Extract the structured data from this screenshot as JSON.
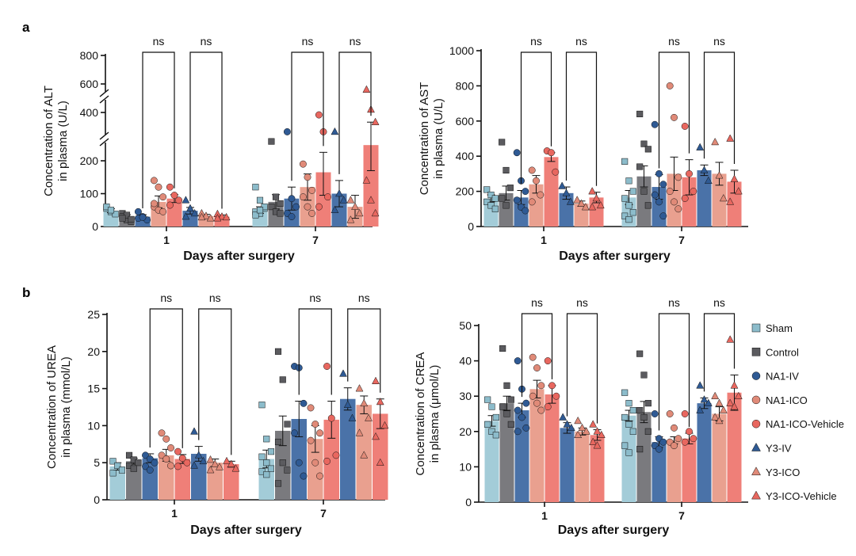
{
  "figure": {
    "panel_labels": [
      "a",
      "b"
    ],
    "legend": [
      {
        "name": "Sham",
        "color": "#a3ccd8",
        "marker": "square",
        "marker_color": "#8cbccb"
      },
      {
        "name": "Control",
        "color": "#7a7a7e",
        "marker": "square",
        "marker_color": "#5b5b5f"
      },
      {
        "name": "NA1-IV",
        "color": "#4a72a8",
        "marker": "circle",
        "marker_color": "#2f5a94"
      },
      {
        "name": "NA1-ICO",
        "color": "#e9a08f",
        "marker": "circle",
        "marker_color": "#e08a78"
      },
      {
        "name": "NA1-ICO-Vehicle",
        "color": "#ef7f78",
        "marker": "circle",
        "marker_color": "#e8675f"
      },
      {
        "name": "Y3-IV",
        "color": "#4a72a8",
        "marker": "triangle",
        "marker_color": "#2f5a94"
      },
      {
        "name": "Y3-ICO",
        "color": "#e9a08f",
        "marker": "triangle",
        "marker_color": "#e08a78"
      },
      {
        "name": "Y3-ICO-Vehicle",
        "color": "#ef7f78",
        "marker": "triangle",
        "marker_color": "#e8675f"
      }
    ]
  },
  "chart_data": [
    {
      "id": "alt",
      "panel": "a",
      "type": "bar",
      "title": "",
      "ylabel_lines": [
        "Concentration of ALT",
        "in plasma (U/L)"
      ],
      "xlabel": "Days after surgery",
      "categories": [
        "1",
        "7"
      ],
      "broken_axis": true,
      "ylim": [
        0,
        800
      ],
      "yticks": [
        0,
        100,
        200,
        400,
        600,
        800
      ],
      "series": [
        {
          "name": "Sham",
          "values": [
            48,
            50
          ],
          "errors": [
            6,
            10
          ]
        },
        {
          "name": "Control",
          "values": [
            28,
            75
          ],
          "errors": [
            8,
            22
          ]
        },
        {
          "name": "NA1-IV",
          "values": [
            30,
            85
          ],
          "errors": [
            6,
            35
          ]
        },
        {
          "name": "NA1-ICO",
          "values": [
            75,
            120
          ],
          "errors": [
            18,
            40
          ]
        },
        {
          "name": "NA1-ICO-Vehicle",
          "values": [
            85,
            165
          ],
          "errors": [
            12,
            70
          ]
        },
        {
          "name": "Y3-IV",
          "values": [
            48,
            100
          ],
          "errors": [
            10,
            40
          ]
        },
        {
          "name": "Y3-ICO",
          "values": [
            32,
            60
          ],
          "errors": [
            5,
            35
          ]
        },
        {
          "name": "Y3-ICO-Vehicle",
          "values": [
            30,
            265
          ],
          "errors": [
            5,
            95
          ]
        }
      ],
      "points": [
        [
          [
            55,
            45,
            38,
            60,
            50
          ],
          [
            120,
            80,
            55,
            45,
            40,
            60,
            35,
            50
          ]
        ],
        [
          [
            40,
            20,
            15,
            30,
            35,
            22,
            25
          ],
          [
            280,
            90,
            70,
            60,
            45,
            40
          ]
        ],
        [
          [
            45,
            30,
            20,
            25,
            28
          ],
          [
            320,
            85,
            60,
            40,
            30
          ]
        ],
        [
          [
            140,
            120,
            90,
            60,
            50,
            45,
            70
          ],
          [
            190,
            150,
            110,
            90,
            60,
            40
          ]
        ],
        [
          [
            120,
            95,
            80,
            65
          ],
          [
            390,
            320,
            90,
            60
          ]
        ],
        [
          [
            80,
            55,
            40,
            30
          ],
          [
            320,
            100,
            80,
            50
          ]
        ],
        [
          [
            40,
            32,
            25,
            28
          ],
          [
            80,
            60,
            40,
            20
          ]
        ],
        [
          [
            38,
            30,
            28,
            25
          ],
          [
            560,
            420,
            360,
            140,
            80,
            40
          ]
        ]
      ],
      "significance": [
        {
          "pair": [
            2,
            4
          ],
          "category": 0,
          "label": "ns"
        },
        {
          "pair": [
            5,
            7
          ],
          "category": 0,
          "label": "ns"
        },
        {
          "pair": [
            2,
            4
          ],
          "category": 1,
          "label": "ns"
        },
        {
          "pair": [
            5,
            7
          ],
          "category": 1,
          "label": "ns"
        }
      ]
    },
    {
      "id": "ast",
      "panel": "a",
      "type": "bar",
      "title": "",
      "ylabel_lines": [
        "Concentration of AST",
        "in plasma (U/L)"
      ],
      "xlabel": "Days after surgery",
      "categories": [
        "1",
        "7"
      ],
      "broken_axis": false,
      "ylim": [
        0,
        1000
      ],
      "yticks": [
        0,
        200,
        400,
        600,
        800,
        1000
      ],
      "series": [
        {
          "name": "Sham",
          "values": [
            160,
            165
          ],
          "errors": [
            20,
            40
          ]
        },
        {
          "name": "Control",
          "values": [
            190,
            285
          ],
          "errors": [
            40,
            60
          ]
        },
        {
          "name": "NA1-IV",
          "values": [
            165,
            225
          ],
          "errors": [
            40,
            70
          ]
        },
        {
          "name": "NA1-ICO",
          "values": [
            240,
            300
          ],
          "errors": [
            50,
            95
          ]
        },
        {
          "name": "NA1-ICO-Vehicle",
          "values": [
            395,
            280
          ],
          "errors": [
            25,
            100
          ]
        },
        {
          "name": "Y3-IV",
          "values": [
            190,
            320
          ],
          "errors": [
            35,
            30
          ]
        },
        {
          "name": "Y3-ICO",
          "values": [
            130,
            300
          ],
          "errors": [
            15,
            65
          ]
        },
        {
          "name": "Y3-ICO-Vehicle",
          "values": [
            165,
            255
          ],
          "errors": [
            30,
            65
          ]
        }
      ],
      "points": [
        [
          [
            210,
            180,
            160,
            140,
            120,
            100
          ],
          [
            370,
            260,
            200,
            160,
            120,
            80,
            60,
            40
          ]
        ],
        [
          [
            480,
            320,
            220,
            160,
            120
          ],
          [
            640,
            470,
            440,
            340,
            200,
            120
          ]
        ],
        [
          [
            420,
            260,
            200,
            150,
            110,
            90
          ],
          [
            580,
            300,
            240,
            180,
            140,
            60
          ]
        ],
        [
          [
            320,
            260,
            180,
            140
          ],
          [
            800,
            620,
            280,
            200,
            140,
            100
          ]
        ],
        [
          [
            430,
            420,
            310
          ],
          [
            570,
            300,
            200,
            160
          ]
        ],
        [
          [
            230,
            190,
            140
          ],
          [
            450,
            320,
            260
          ]
        ],
        [
          [
            150,
            130,
            110
          ],
          [
            480,
            290,
            160
          ]
        ],
        [
          [
            200,
            160,
            120,
            110
          ],
          [
            500,
            270,
            200,
            140
          ]
        ]
      ],
      "significance": [
        {
          "pair": [
            2,
            4
          ],
          "category": 0,
          "label": "ns"
        },
        {
          "pair": [
            5,
            7
          ],
          "category": 0,
          "label": "ns"
        },
        {
          "pair": [
            2,
            4
          ],
          "category": 1,
          "label": "ns"
        },
        {
          "pair": [
            5,
            7
          ],
          "category": 1,
          "label": "ns"
        }
      ]
    },
    {
      "id": "urea",
      "panel": "b",
      "type": "bar",
      "title": "",
      "ylabel_lines": [
        "Concentration of UREA",
        "in plasma (mmol/L)"
      ],
      "xlabel": "Days after surgery",
      "categories": [
        "1",
        "7"
      ],
      "broken_axis": false,
      "ylim": [
        0,
        25
      ],
      "yticks": [
        0,
        5,
        10,
        15,
        20,
        25
      ],
      "series": [
        {
          "name": "Sham",
          "values": [
            4.5,
            5.5
          ],
          "errors": [
            0.5,
            1.2
          ]
        },
        {
          "name": "Control",
          "values": [
            5.2,
            9.3
          ],
          "errors": [
            0.4,
            2.0
          ]
        },
        {
          "name": "NA1-IV",
          "values": [
            5.6,
            10.9
          ],
          "errors": [
            0.6,
            2.4
          ]
        },
        {
          "name": "NA1-ICO",
          "values": [
            6.0,
            8.2
          ],
          "errors": [
            0.8,
            1.8
          ]
        },
        {
          "name": "NA1-ICO-Vehicle",
          "values": [
            5.5,
            10.8
          ],
          "errors": [
            0.6,
            2.5
          ]
        },
        {
          "name": "Y3-IV",
          "values": [
            6.2,
            13.6
          ],
          "errors": [
            1.0,
            1.5
          ]
        },
        {
          "name": "Y3-ICO",
          "values": [
            5.0,
            12.8
          ],
          "errors": [
            0.5,
            1.2
          ]
        },
        {
          "name": "Y3-ICO-Vehicle",
          "values": [
            4.8,
            11.6
          ],
          "errors": [
            0.4,
            2.0
          ]
        }
      ],
      "points": [
        [
          [
            5.2,
            4.6,
            4.0,
            3.6
          ],
          [
            12.8,
            8.2,
            6.5,
            5.8,
            5.0,
            4.2,
            3.8,
            3.4
          ]
        ],
        [
          [
            6.0,
            5.4,
            5.0,
            4.6,
            4.2
          ],
          [
            20.0,
            16.2,
            10.2,
            7.8,
            5.0,
            4.0,
            2.2
          ]
        ],
        [
          [
            6.0,
            5.5,
            5.0,
            4.5,
            4.0
          ],
          [
            18.0,
            17.8,
            13.0,
            9.0,
            5.0,
            3.2
          ]
        ],
        [
          [
            9.0,
            8.2,
            7.0,
            6.0,
            5.5,
            4.6
          ],
          [
            12.4,
            10.2,
            9.0,
            8.0,
            5.0,
            3.2
          ]
        ],
        [
          [
            6.5,
            5.6,
            5.0,
            4.5
          ],
          [
            18.0,
            11.0,
            6.0,
            5.2
          ]
        ],
        [
          [
            9.2,
            6.0,
            5.2,
            4.6
          ],
          [
            17.0,
            12.8,
            11.0
          ]
        ],
        [
          [
            5.4,
            4.8,
            4.4,
            4.0
          ],
          [
            15.0,
            13.0,
            11.0,
            9.0,
            6.0
          ]
        ],
        [
          [
            5.2,
            4.8,
            4.2
          ],
          [
            16.0,
            13.2,
            10.0,
            8.5,
            5.0
          ]
        ]
      ],
      "significance": [
        {
          "pair": [
            2,
            4
          ],
          "category": 0,
          "label": "ns"
        },
        {
          "pair": [
            5,
            7
          ],
          "category": 0,
          "label": "ns"
        },
        {
          "pair": [
            2,
            4
          ],
          "category": 1,
          "label": "ns"
        },
        {
          "pair": [
            5,
            7
          ],
          "category": 1,
          "label": "ns"
        }
      ]
    },
    {
      "id": "crea",
      "panel": "b",
      "type": "bar",
      "title": "",
      "ylabel_lines": [
        "Concentration of CREA",
        "in plasma (μmol/L)"
      ],
      "xlabel": "Days after surgery",
      "categories": [
        "1",
        "7"
      ],
      "broken_axis": false,
      "ylim": [
        0,
        50
      ],
      "yticks": [
        0,
        10,
        20,
        30,
        40,
        50
      ],
      "series": [
        {
          "name": "Sham",
          "values": [
            23,
            24.5
          ],
          "errors": [
            1.5,
            1.5
          ]
        },
        {
          "name": "Control",
          "values": [
            28,
            25.5
          ],
          "errors": [
            2.0,
            3.0
          ]
        },
        {
          "name": "NA1-IV",
          "values": [
            26,
            17
          ],
          "errors": [
            2.0,
            1.5
          ]
        },
        {
          "name": "NA1-ICO",
          "values": [
            32,
            17.5
          ],
          "errors": [
            2.5,
            1.0
          ]
        },
        {
          "name": "NA1-ICO-Vehicle",
          "values": [
            30.5,
            18
          ],
          "errors": [
            2.5,
            1.5
          ]
        },
        {
          "name": "Y3-IV",
          "values": [
            21,
            28
          ],
          "errors": [
            1.5,
            1.5
          ]
        },
        {
          "name": "Y3-ICO",
          "values": [
            20,
            25
          ],
          "errors": [
            1.0,
            2.0
          ]
        },
        {
          "name": "Y3-ICO-Vehicle",
          "values": [
            19,
            31
          ],
          "errors": [
            1.5,
            5.0
          ]
        }
      ],
      "points": [
        [
          [
            29,
            27,
            24,
            22,
            20,
            19
          ],
          [
            31,
            28,
            26,
            24,
            22,
            20,
            16,
            14
          ]
        ],
        [
          [
            43.5,
            33,
            29,
            27,
            25,
            22
          ],
          [
            42,
            36,
            28,
            26,
            24,
            20,
            15
          ]
        ],
        [
          [
            40,
            32,
            28,
            26,
            24,
            21,
            20
          ],
          [
            25,
            18,
            17,
            16,
            15
          ]
        ],
        [
          [
            41,
            38,
            33,
            30,
            28,
            26
          ],
          [
            25,
            21,
            18,
            17,
            16
          ]
        ],
        [
          [
            40,
            33,
            30,
            27
          ],
          [
            25,
            20,
            18,
            17
          ]
        ],
        [
          [
            24,
            22,
            21
          ],
          [
            33,
            29,
            28,
            26
          ]
        ],
        [
          [
            23,
            21,
            20,
            19
          ],
          [
            30,
            28,
            26,
            24,
            23
          ]
        ],
        [
          [
            22,
            20,
            19,
            17,
            16
          ],
          [
            46,
            33,
            30,
            28,
            27
          ]
        ]
      ],
      "significance": [
        {
          "pair": [
            2,
            4
          ],
          "category": 0,
          "label": "ns"
        },
        {
          "pair": [
            5,
            7
          ],
          "category": 0,
          "label": "ns"
        },
        {
          "pair": [
            2,
            4
          ],
          "category": 1,
          "label": "ns"
        },
        {
          "pair": [
            5,
            7
          ],
          "category": 1,
          "label": "ns"
        }
      ]
    }
  ]
}
